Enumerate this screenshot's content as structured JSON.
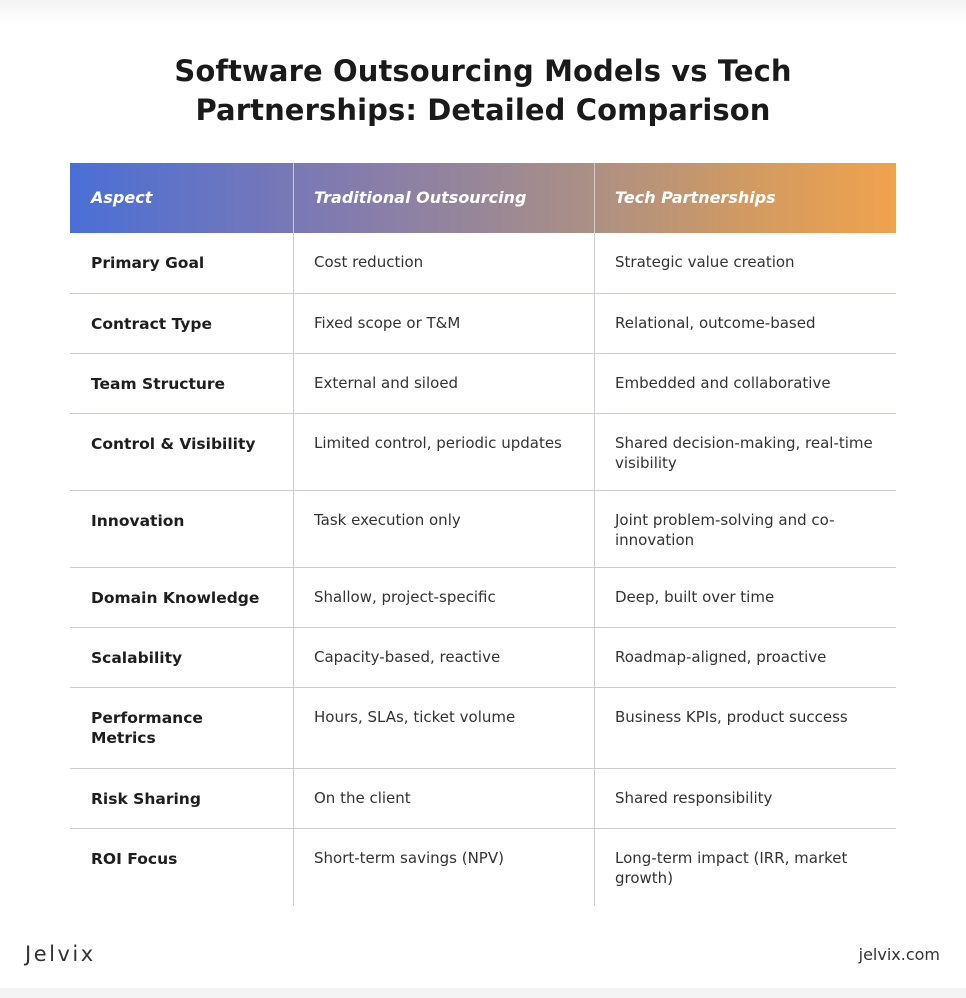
{
  "title_lines": [
    "Software Outsourcing Models vs Tech",
    "Partnerships: Detailed Comparison"
  ],
  "table": {
    "headers": [
      "Aspect",
      "Traditional Outsourcing",
      "Tech Partnerships"
    ],
    "rows": [
      [
        "Primary Goal",
        "Cost reduction",
        "Strategic value creation"
      ],
      [
        "Contract Type",
        "Fixed scope or T&M",
        "Relational, outcome-based"
      ],
      [
        "Team Structure",
        "External and siloed",
        "Embedded and collaborative"
      ],
      [
        "Control & Visibility",
        "Limited control, periodic updates",
        "Shared decision-making, real-time visibility"
      ],
      [
        "Innovation",
        "Task execution only",
        "Joint problem-solving and co-innovation"
      ],
      [
        "Domain Knowledge",
        "Shallow, project-specific",
        "Deep, built over time"
      ],
      [
        "Scalability",
        "Capacity-based, reactive",
        "Roadmap-aligned, proactive"
      ],
      [
        "Performance Metrics",
        "Hours, SLAs, ticket volume",
        "Business KPIs, product success"
      ],
      [
        "Risk Sharing",
        "On the client",
        "Shared responsibility"
      ],
      [
        "ROI Focus",
        "Short-term savings (NPV)",
        "Long-term impact (IRR, market growth)"
      ]
    ]
  },
  "footer": {
    "logo_text": "Jelvix",
    "site": "jelvix.com"
  },
  "colors": {
    "header_gradient_start": "#4a6fd6",
    "header_gradient_end": "#f0a34d",
    "grid_line": "#c9cbd6"
  }
}
